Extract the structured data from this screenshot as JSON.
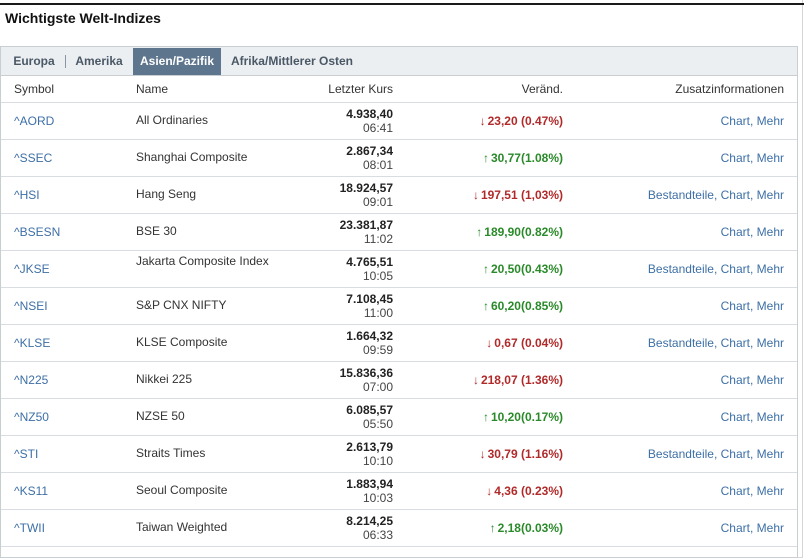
{
  "title": "Wichtigste Welt-Indizes",
  "tabs": [
    {
      "label": "Europa",
      "active": false
    },
    {
      "label": "Amerika",
      "active": false
    },
    {
      "label": "Asien/Pazifik",
      "active": true
    },
    {
      "label": "Afrika/Mittlerer Osten",
      "active": false
    }
  ],
  "headers": {
    "symbol": "Symbol",
    "name": "Name",
    "last": "Letzter Kurs",
    "change": "Veränd.",
    "info": "Zusatzinformationen"
  },
  "colors": {
    "up": "#2a8a2a",
    "down": "#b12a2a",
    "link": "#3d6fa6",
    "tab_active": "#5d758d"
  },
  "rows": [
    {
      "symbol": "^AORD",
      "name": "All Ordinaries",
      "price": "4.938,40",
      "time": "06:41",
      "change": "23,20 (0.47%)",
      "dir": "down",
      "info": "Chart, Mehr"
    },
    {
      "symbol": "^SSEC",
      "name": "Shanghai Composite",
      "price": "2.867,34",
      "time": "08:01",
      "change": "30,77(1.08%)",
      "dir": "up",
      "info": "Chart, Mehr"
    },
    {
      "symbol": "^HSI",
      "name": "Hang Seng",
      "price": "18.924,57",
      "time": "09:01",
      "change": "197,51 (1,03%)",
      "dir": "down",
      "info": "Bestandteile, Chart, Mehr"
    },
    {
      "symbol": "^BSESN",
      "name": "BSE 30",
      "price": "23.381,87",
      "time": "11:02",
      "change": "189,90(0.82%)",
      "dir": "up",
      "info": "Chart, Mehr"
    },
    {
      "symbol": "^JKSE",
      "name": "Jakarta Composite Index",
      "price": "4.765,51",
      "time": "10:05",
      "change": "20,50(0.43%)",
      "dir": "up",
      "info": "Bestandteile, Chart, Mehr"
    },
    {
      "symbol": "^NSEI",
      "name": "S&P CNX NIFTY",
      "price": "7.108,45",
      "time": "11:00",
      "change": "60,20(0.85%)",
      "dir": "up",
      "info": "Chart, Mehr"
    },
    {
      "symbol": "^KLSE",
      "name": "KLSE Composite",
      "price": "1.664,32",
      "time": "09:59",
      "change": "0,67 (0.04%)",
      "dir": "down",
      "info": "Bestandteile, Chart, Mehr"
    },
    {
      "symbol": "^N225",
      "name": "Nikkei 225",
      "price": "15.836,36",
      "time": "07:00",
      "change": "218,07 (1.36%)",
      "dir": "down",
      "info": "Chart, Mehr"
    },
    {
      "symbol": "^NZ50",
      "name": "NZSE 50",
      "price": "6.085,57",
      "time": "05:50",
      "change": "10,20(0.17%)",
      "dir": "up",
      "info": "Chart, Mehr"
    },
    {
      "symbol": "^STI",
      "name": "Straits Times",
      "price": "2.613,79",
      "time": "10:10",
      "change": "30,79 (1.16%)",
      "dir": "down",
      "info": "Bestandteile, Chart, Mehr"
    },
    {
      "symbol": "^KS11",
      "name": "Seoul Composite",
      "price": "1.883,94",
      "time": "10:03",
      "change": "4,36 (0.23%)",
      "dir": "down",
      "info": "Chart, Mehr"
    },
    {
      "symbol": "^TWII",
      "name": "Taiwan Weighted",
      "price": "8.214,25",
      "time": "06:33",
      "change": "2,18(0.03%)",
      "dir": "up",
      "info": "Chart, Mehr"
    }
  ]
}
